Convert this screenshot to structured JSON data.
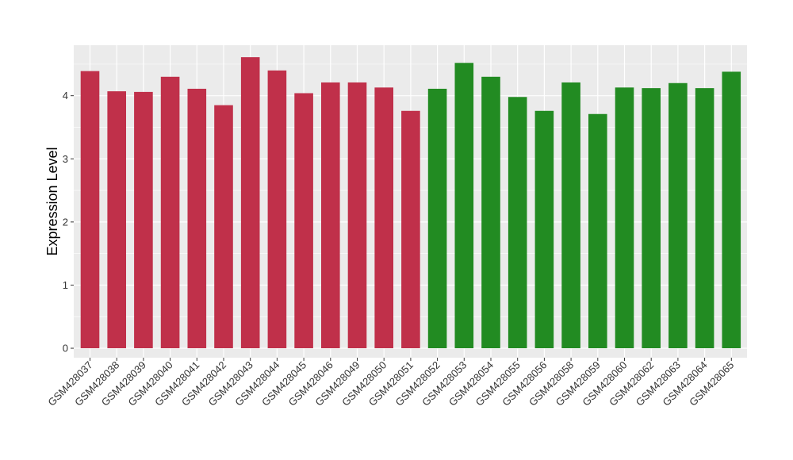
{
  "chart_data": {
    "type": "bar",
    "ylabel": "Expression Level",
    "xlabel": "",
    "ylim": [
      -0.15,
      4.8
    ],
    "yticks": [
      0,
      1,
      2,
      3,
      4
    ],
    "grid": true,
    "colors": {
      "group1": "#C0304A",
      "group2": "#228B22",
      "panel": "#EBEBEB",
      "gridline": "#FFFFFF"
    },
    "categories": [
      "GSM428037",
      "GSM428038",
      "GSM428039",
      "GSM428040",
      "GSM428041",
      "GSM428042",
      "GSM428043",
      "GSM428044",
      "GSM428045",
      "GSM428046",
      "GSM428049",
      "GSM428050",
      "GSM428051",
      "GSM428052",
      "GSM428053",
      "GSM428054",
      "GSM428055",
      "GSM428056",
      "GSM428058",
      "GSM428059",
      "GSM428060",
      "GSM428062",
      "GSM428063",
      "GSM428064",
      "GSM428065"
    ],
    "values": [
      4.39,
      4.07,
      4.06,
      4.3,
      4.11,
      3.85,
      4.61,
      4.4,
      4.04,
      4.21,
      4.21,
      4.13,
      3.76,
      4.11,
      4.52,
      4.3,
      3.98,
      3.76,
      4.21,
      3.71,
      4.13,
      4.12,
      4.2,
      4.12,
      4.38
    ],
    "groups": [
      1,
      1,
      1,
      1,
      1,
      1,
      1,
      1,
      1,
      1,
      1,
      1,
      1,
      2,
      2,
      2,
      2,
      2,
      2,
      2,
      2,
      2,
      2,
      2,
      2
    ]
  }
}
